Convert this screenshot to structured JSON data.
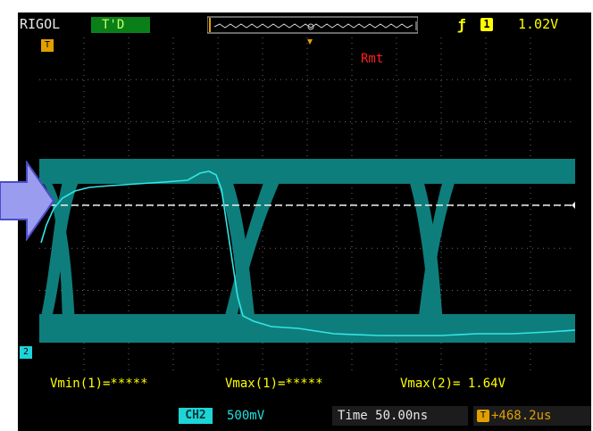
{
  "header": {
    "brand": "RIGOL",
    "trigger_status": "T'D",
    "trigger_level": "1.02V",
    "trigger_channel": "1",
    "trigger_edge_icon": "rising-edge-icon"
  },
  "overlay": {
    "remote": "Rmt",
    "trigger_marker": "T",
    "ch2_marker": "2"
  },
  "measurements": {
    "vmin1": "Vmin(1)=*****",
    "vmax1": "Vmax(1)=*****",
    "vmax2": "Vmax(2)= 1.64V"
  },
  "footer": {
    "channel": "CH2",
    "scale": "500mV",
    "time": "Time 50.00ns",
    "offset": "+468.2us",
    "offset_icon_label": "T"
  },
  "colors": {
    "trace_teal": "#0e7e7c",
    "trace_cyan": "#33e6e6",
    "grid": "#6a6a6a",
    "trigger_yellow": "#ffff00",
    "accent_orange": "#e0a000",
    "arrow_fill": "#9a9cf0",
    "arrow_stroke": "#4c4cc8"
  }
}
